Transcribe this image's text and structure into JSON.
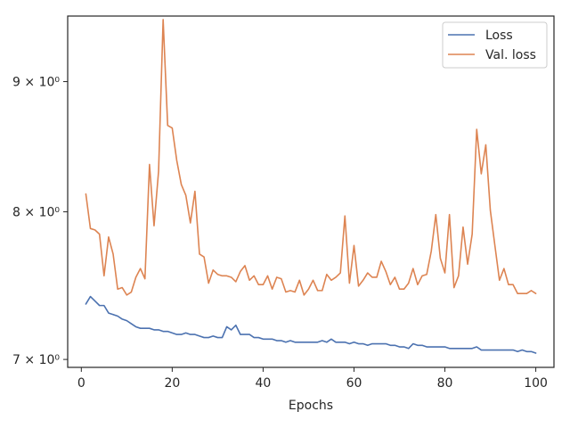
{
  "chart_data": {
    "type": "line",
    "title": "",
    "xlabel": "Epochs",
    "ylabel": "",
    "yscale": "log",
    "xlim": [
      -3,
      104
    ],
    "ylim": [
      6.95,
      9.55
    ],
    "xticks": [
      {
        "value": 0,
        "label": "0"
      },
      {
        "value": 20,
        "label": "20"
      },
      {
        "value": 40,
        "label": "40"
      },
      {
        "value": 60,
        "label": "60"
      },
      {
        "value": 80,
        "label": "80"
      },
      {
        "value": 100,
        "label": "100"
      }
    ],
    "yticks": [
      {
        "value": 7,
        "label": "7 × 10⁰"
      },
      {
        "value": 8,
        "label": "8 × 10⁰"
      },
      {
        "value": 9,
        "label": "9 × 10⁰"
      }
    ],
    "grid": false,
    "legend": {
      "position": "top-right"
    },
    "series": [
      {
        "name": "Loss",
        "color": "#4c72b0",
        "x": [
          1,
          2,
          3,
          4,
          5,
          6,
          7,
          8,
          9,
          10,
          11,
          12,
          13,
          14,
          15,
          16,
          17,
          18,
          19,
          20,
          21,
          22,
          23,
          24,
          25,
          26,
          27,
          28,
          29,
          30,
          31,
          32,
          33,
          34,
          35,
          36,
          37,
          38,
          39,
          40,
          41,
          42,
          43,
          44,
          45,
          46,
          47,
          48,
          49,
          50,
          51,
          52,
          53,
          54,
          55,
          56,
          57,
          58,
          59,
          60,
          61,
          62,
          63,
          64,
          65,
          66,
          67,
          68,
          69,
          70,
          71,
          72,
          73,
          74,
          75,
          76,
          77,
          78,
          79,
          80,
          81,
          82,
          83,
          84,
          85,
          86,
          87,
          88,
          89,
          90,
          91,
          92,
          93,
          94,
          95,
          96,
          97,
          98,
          99,
          100
        ],
        "values": [
          7.36,
          7.41,
          7.38,
          7.35,
          7.35,
          7.3,
          7.29,
          7.28,
          7.26,
          7.25,
          7.23,
          7.21,
          7.2,
          7.2,
          7.2,
          7.19,
          7.19,
          7.18,
          7.18,
          7.17,
          7.16,
          7.16,
          7.17,
          7.16,
          7.16,
          7.15,
          7.14,
          7.14,
          7.15,
          7.14,
          7.14,
          7.21,
          7.19,
          7.22,
          7.16,
          7.16,
          7.16,
          7.14,
          7.14,
          7.13,
          7.13,
          7.13,
          7.12,
          7.12,
          7.11,
          7.12,
          7.11,
          7.11,
          7.11,
          7.11,
          7.11,
          7.11,
          7.12,
          7.11,
          7.13,
          7.11,
          7.11,
          7.11,
          7.1,
          7.11,
          7.1,
          7.1,
          7.09,
          7.1,
          7.1,
          7.1,
          7.1,
          7.09,
          7.09,
          7.08,
          7.08,
          7.07,
          7.1,
          7.09,
          7.09,
          7.08,
          7.08,
          7.08,
          7.08,
          7.08,
          7.07,
          7.07,
          7.07,
          7.07,
          7.07,
          7.07,
          7.08,
          7.06,
          7.06,
          7.06,
          7.06,
          7.06,
          7.06,
          7.06,
          7.06,
          7.05,
          7.06,
          7.05,
          7.05,
          7.04
        ]
      },
      {
        "name": "Val. loss",
        "color": "#dd8452",
        "x": [
          1,
          2,
          3,
          4,
          5,
          6,
          7,
          8,
          9,
          10,
          11,
          12,
          13,
          14,
          15,
          16,
          17,
          18,
          19,
          20,
          21,
          22,
          23,
          24,
          25,
          26,
          27,
          28,
          29,
          30,
          31,
          32,
          33,
          34,
          35,
          36,
          37,
          38,
          39,
          40,
          41,
          42,
          43,
          44,
          45,
          46,
          47,
          48,
          49,
          50,
          51,
          52,
          53,
          54,
          55,
          56,
          57,
          58,
          59,
          60,
          61,
          62,
          63,
          64,
          65,
          66,
          67,
          68,
          69,
          70,
          71,
          72,
          73,
          74,
          75,
          76,
          77,
          78,
          79,
          80,
          81,
          82,
          83,
          84,
          85,
          86,
          87,
          88,
          89,
          90,
          91,
          92,
          93,
          94,
          95,
          96,
          97,
          98,
          99,
          100
        ],
        "values": [
          8.13,
          7.88,
          7.87,
          7.84,
          7.55,
          7.82,
          7.7,
          7.46,
          7.47,
          7.42,
          7.44,
          7.54,
          7.6,
          7.53,
          8.35,
          7.9,
          8.3,
          9.52,
          8.65,
          8.63,
          8.38,
          8.2,
          8.12,
          7.92,
          8.15,
          7.7,
          7.68,
          7.5,
          7.59,
          7.56,
          7.55,
          7.55,
          7.54,
          7.51,
          7.58,
          7.62,
          7.52,
          7.55,
          7.49,
          7.49,
          7.55,
          7.46,
          7.54,
          7.53,
          7.44,
          7.45,
          7.44,
          7.52,
          7.42,
          7.46,
          7.52,
          7.45,
          7.45,
          7.56,
          7.52,
          7.54,
          7.57,
          7.97,
          7.5,
          7.76,
          7.48,
          7.52,
          7.57,
          7.54,
          7.54,
          7.65,
          7.58,
          7.49,
          7.54,
          7.46,
          7.46,
          7.5,
          7.6,
          7.49,
          7.55,
          7.56,
          7.72,
          7.98,
          7.67,
          7.57,
          7.98,
          7.47,
          7.55,
          7.89,
          7.63,
          7.84,
          8.62,
          8.28,
          8.5,
          8.01,
          7.76,
          7.52,
          7.6,
          7.49,
          7.49,
          7.43,
          7.43,
          7.43,
          7.45,
          7.43
        ]
      }
    ]
  }
}
